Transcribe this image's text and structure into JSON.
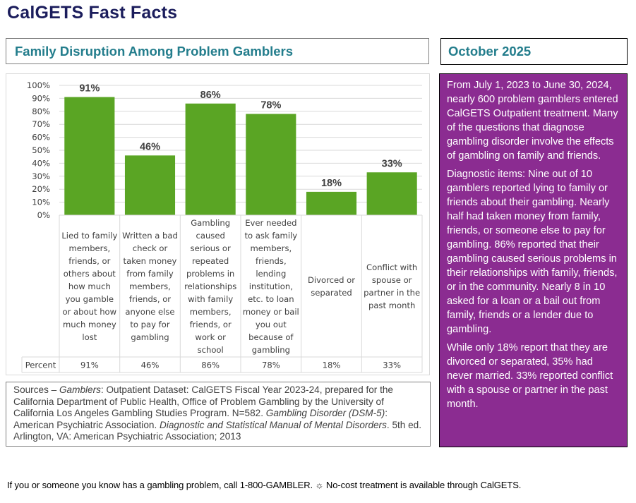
{
  "header": {
    "title": "CalGETS Fast Facts",
    "section_title": "Family Disruption Among Problem Gamblers",
    "date": "October 2025"
  },
  "colors": {
    "title": "#1b1d5c",
    "section_title": "#237d8c",
    "bar": "#5aa524",
    "sidebar_bg": "#8b2c91"
  },
  "chart_data": {
    "type": "bar",
    "title": "Family Disruption Among Problem Gamblers",
    "xlabel": "",
    "ylabel": "",
    "ylim": [
      0,
      100
    ],
    "yticks": [
      "0%",
      "10%",
      "20%",
      "30%",
      "40%",
      "50%",
      "60%",
      "70%",
      "80%",
      "90%",
      "100%"
    ],
    "grid": true,
    "legend": "none",
    "categories": [
      "Lied to family members, friends, or others about how much you gamble or about how much money lost",
      "Written a bad check or taken money from family members, friends, or anyone else to pay for gambling",
      "Gambling caused serious or repeated problems in relationships with family members, friends, or work or school",
      "Ever needed to ask family members, friends, lending institution, etc. to loan money or bail you out because of gambling",
      "Divorced or separated",
      "Conflict with spouse or partner in the past month"
    ],
    "series": [
      {
        "name": "Percent",
        "values": [
          91,
          46,
          86,
          78,
          18,
          33
        ]
      }
    ],
    "data_labels": [
      "91%",
      "46%",
      "86%",
      "78%",
      "18%",
      "33%"
    ],
    "table_row_label": "Percent",
    "table_values": [
      "91%",
      "46%",
      "86%",
      "78%",
      "18%",
      "33%"
    ]
  },
  "sidebar": {
    "paragraphs": [
      "From July 1, 2023 to June 30, 2024, nearly 600 problem gamblers entered CalGETS Outpatient treatment. Many of the questions that diagnose gambling disorder involve the effects of gambling on family and friends.",
      "Diagnostic items: Nine out of 10 gamblers reported lying to family or friends about their gambling. Nearly half had taken money from family, friends, or someone else to pay for gambling. 86% reported that their gambling caused serious problems in their relationships with family, friends, or in the community. Nearly 8 in 10 asked for a loan or a bail out from family, friends or a lender due to gambling.",
      "While only 18% report that they are divorced or separated, 35% had never married. 33% reported conflict with a spouse or partner in the past month."
    ]
  },
  "sources": {
    "prefix": "Sources – ",
    "gamblers_label": "Gamblers",
    "gamblers_text": ": Outpatient Dataset: CalGETS Fiscal Year 2023-24, prepared for the California Department of Public Health, Office of Problem Gambling by the University of California Los Angeles Gambling Studies Program.  N=582. ",
    "dsm_label": "Gambling Disorder (DSM-5)",
    "dsm_text": ": American Psychiatric Association. ",
    "manual_title": "Diagnostic and Statistical Manual of Mental Disorders",
    "manual_text": ". 5th ed. Arlington, VA: American Psychiatric Association; 2013"
  },
  "footer": {
    "text_before": "If you or someone you know has a gambling problem, call 1-800-GAMBLER.",
    "separator_icon": "☼",
    "text_after": "No-cost treatment is available through CalGETS."
  }
}
